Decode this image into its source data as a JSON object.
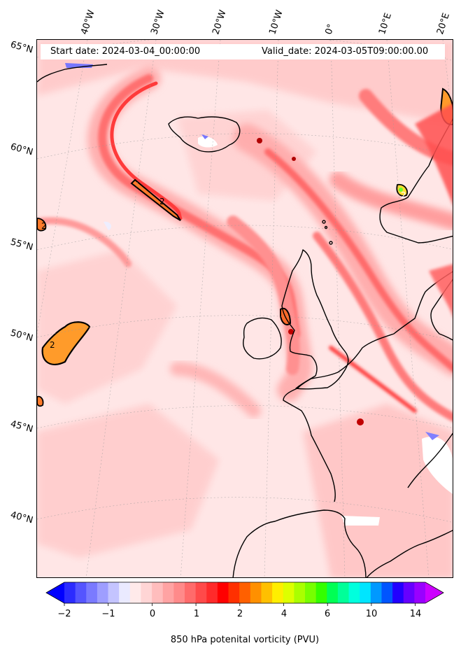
{
  "header": {
    "start_date": "Start date: 2024-03-04_00:00:00",
    "valid_date": "Valid_date: 2024-03-05T09:00:00.00"
  },
  "longitude_labels": [
    "40°W",
    "30°W",
    "20°W",
    "10°W",
    "0°",
    "10°E",
    "20°E"
  ],
  "latitude_labels": [
    "65°N",
    "60°N",
    "55°N",
    "50°N",
    "45°N",
    "40°N"
  ],
  "colorbar": {
    "title": "850 hPa potenital vorticity (PVU)",
    "tick_labels": [
      "−2",
      "−1",
      "0",
      "1",
      "2",
      "4",
      "6",
      "10",
      "14"
    ],
    "colors": [
      "#0000ff",
      "#2b2bff",
      "#5555ff",
      "#7a7aff",
      "#9e9eff",
      "#c4c4ff",
      "#eaeaff",
      "#ffeaea",
      "#ffd5d5",
      "#ffbdbd",
      "#ffa3a3",
      "#ff8a8a",
      "#ff6b6b",
      "#ff4a4a",
      "#ff2a2a",
      "#ff0000",
      "#ff3000",
      "#ff6000",
      "#ff9000",
      "#ffc000",
      "#ffee00",
      "#ddff00",
      "#aaff00",
      "#77ff00",
      "#33ff00",
      "#00ff55",
      "#00ff99",
      "#00ffdd",
      "#00e5ff",
      "#0099ff",
      "#0055ff",
      "#2200ff",
      "#6600ff",
      "#9900ff",
      "#cc00ff"
    ]
  },
  "contour_label": "2"
}
